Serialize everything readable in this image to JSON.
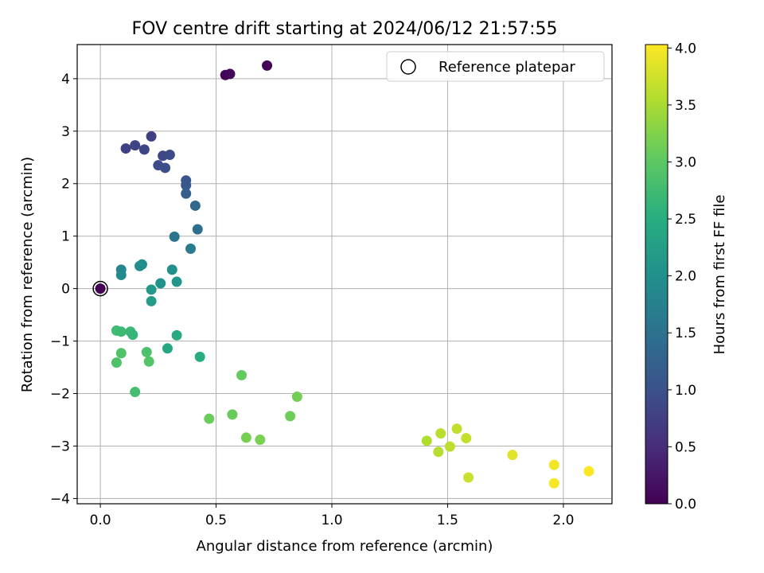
{
  "chart_data": {
    "type": "scatter",
    "title": "FOV centre drift starting at 2024/06/12 21:57:55",
    "xlabel": "Angular distance from reference (arcmin)",
    "ylabel": "Rotation from reference (arcmin)",
    "xlim": [
      -0.1,
      2.21
    ],
    "ylim": [
      -4.1,
      4.65
    ],
    "xticks": [
      "0.0",
      "0.5",
      "1.0",
      "1.5",
      "2.0"
    ],
    "yticks": [
      "−4",
      "−3",
      "−2",
      "−1",
      "0",
      "1",
      "2",
      "3",
      "4"
    ],
    "grid": true,
    "legend": {
      "position": "top-right",
      "label": "Reference platepar"
    },
    "reference_point": {
      "x": 0.0,
      "y": 0.0
    },
    "colorbar": {
      "label": "Hours from first FF file",
      "colormap": "viridis",
      "range": [
        0.0,
        4.03
      ],
      "ticks": [
        "0.0",
        "0.5",
        "1.0",
        "1.5",
        "2.0",
        "2.5",
        "3.0",
        "3.5",
        "4.0"
      ]
    },
    "points": [
      {
        "x": 0.0,
        "y": 0.0,
        "t": 0.0
      },
      {
        "x": 0.54,
        "y": 4.07,
        "t": 0.05
      },
      {
        "x": 0.56,
        "y": 4.09,
        "t": 0.08
      },
      {
        "x": 0.72,
        "y": 4.25,
        "t": 0.02
      },
      {
        "x": 0.22,
        "y": 2.9,
        "t": 0.75
      },
      {
        "x": 0.11,
        "y": 2.67,
        "t": 0.78
      },
      {
        "x": 0.15,
        "y": 2.73,
        "t": 0.8
      },
      {
        "x": 0.19,
        "y": 2.65,
        "t": 0.82
      },
      {
        "x": 0.27,
        "y": 2.53,
        "t": 0.85
      },
      {
        "x": 0.3,
        "y": 2.55,
        "t": 0.88
      },
      {
        "x": 0.25,
        "y": 2.35,
        "t": 0.92
      },
      {
        "x": 0.28,
        "y": 2.3,
        "t": 0.95
      },
      {
        "x": 0.37,
        "y": 2.06,
        "t": 1.05
      },
      {
        "x": 0.37,
        "y": 1.97,
        "t": 1.1
      },
      {
        "x": 0.37,
        "y": 1.81,
        "t": 1.2
      },
      {
        "x": 0.41,
        "y": 1.58,
        "t": 1.35
      },
      {
        "x": 0.42,
        "y": 1.13,
        "t": 1.45
      },
      {
        "x": 0.32,
        "y": 0.99,
        "t": 1.55
      },
      {
        "x": 0.39,
        "y": 0.76,
        "t": 1.65
      },
      {
        "x": 0.09,
        "y": 0.36,
        "t": 1.85
      },
      {
        "x": 0.09,
        "y": 0.26,
        "t": 1.9
      },
      {
        "x": 0.17,
        "y": 0.43,
        "t": 1.95
      },
      {
        "x": 0.18,
        "y": 0.46,
        "t": 1.98
      },
      {
        "x": 0.31,
        "y": 0.36,
        "t": 2.0
      },
      {
        "x": 0.26,
        "y": 0.1,
        "t": 2.05
      },
      {
        "x": 0.33,
        "y": 0.13,
        "t": 2.1
      },
      {
        "x": 0.22,
        "y": -0.02,
        "t": 2.15
      },
      {
        "x": 0.22,
        "y": -0.24,
        "t": 2.2
      },
      {
        "x": 0.07,
        "y": -0.8,
        "t": 2.75
      },
      {
        "x": 0.09,
        "y": -0.82,
        "t": 2.72
      },
      {
        "x": 0.13,
        "y": -0.82,
        "t": 2.7
      },
      {
        "x": 0.14,
        "y": -0.88,
        "t": 2.65
      },
      {
        "x": 0.33,
        "y": -0.89,
        "t": 2.45
      },
      {
        "x": 0.29,
        "y": -1.14,
        "t": 2.4
      },
      {
        "x": 0.2,
        "y": -1.21,
        "t": 2.85
      },
      {
        "x": 0.09,
        "y": -1.23,
        "t": 2.9
      },
      {
        "x": 0.07,
        "y": -1.41,
        "t": 2.88
      },
      {
        "x": 0.21,
        "y": -1.39,
        "t": 2.92
      },
      {
        "x": 0.43,
        "y": -1.3,
        "t": 2.5
      },
      {
        "x": 0.15,
        "y": -1.97,
        "t": 2.8
      },
      {
        "x": 0.61,
        "y": -1.65,
        "t": 3.05
      },
      {
        "x": 0.85,
        "y": -2.06,
        "t": 3.15
      },
      {
        "x": 0.47,
        "y": -2.48,
        "t": 3.1
      },
      {
        "x": 0.57,
        "y": -2.4,
        "t": 3.08
      },
      {
        "x": 0.82,
        "y": -2.43,
        "t": 3.12
      },
      {
        "x": 0.63,
        "y": -2.84,
        "t": 3.18
      },
      {
        "x": 0.69,
        "y": -2.88,
        "t": 3.2
      },
      {
        "x": 1.41,
        "y": -2.9,
        "t": 3.55
      },
      {
        "x": 1.47,
        "y": -2.76,
        "t": 3.6
      },
      {
        "x": 1.46,
        "y": -3.11,
        "t": 3.58
      },
      {
        "x": 1.51,
        "y": -3.01,
        "t": 3.62
      },
      {
        "x": 1.54,
        "y": -2.67,
        "t": 3.65
      },
      {
        "x": 1.58,
        "y": -2.85,
        "t": 3.68
      },
      {
        "x": 1.59,
        "y": -3.6,
        "t": 3.7
      },
      {
        "x": 1.78,
        "y": -3.17,
        "t": 3.85
      },
      {
        "x": 1.96,
        "y": -3.36,
        "t": 3.95
      },
      {
        "x": 1.96,
        "y": -3.71,
        "t": 3.98
      },
      {
        "x": 2.11,
        "y": -3.48,
        "t": 4.02
      }
    ]
  }
}
